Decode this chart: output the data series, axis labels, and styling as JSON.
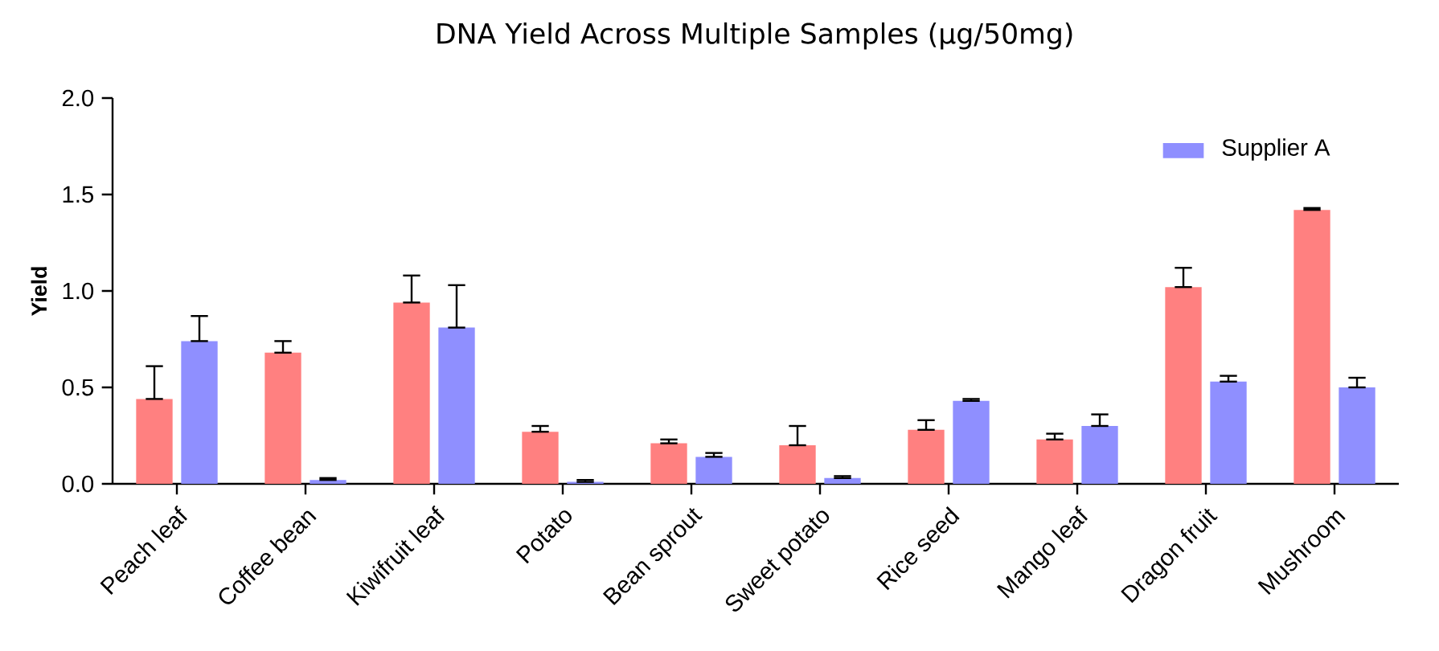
{
  "chart_data": {
    "type": "bar",
    "title": "DNA Yield Across Multiple Samples (µg/50mg)",
    "ylabel": "Yield",
    "categories": [
      "Peach leaf",
      "Coffee bean",
      "Kiwifruit leaf",
      "Potato",
      "Bean sprout",
      "Sweet potato",
      "Rice seed",
      "Mango leaf",
      "Dragon fruit",
      "Mushroom"
    ],
    "series": [
      {
        "color": "#ff8080",
        "values": [
          0.44,
          0.68,
          0.94,
          0.27,
          0.21,
          0.2,
          0.28,
          0.23,
          1.02,
          1.42
        ],
        "errors": [
          [
            0.44,
            0.61
          ],
          [
            0.68,
            0.74
          ],
          [
            0.94,
            1.08
          ],
          [
            0.27,
            0.3
          ],
          [
            0.21,
            0.23
          ],
          [
            0.2,
            0.3
          ],
          [
            0.28,
            0.33
          ],
          [
            0.23,
            0.26
          ],
          [
            1.02,
            1.12
          ],
          [
            1.42,
            1.43
          ]
        ]
      },
      {
        "name": "Supplier A",
        "color": "#8f8fff",
        "values": [
          0.74,
          0.02,
          0.81,
          0.01,
          0.14,
          0.03,
          0.43,
          0.3,
          0.53,
          0.5
        ],
        "errors": [
          [
            0.74,
            0.87
          ],
          [
            0.02,
            0.03
          ],
          [
            0.81,
            1.03
          ],
          [
            0.01,
            0.02
          ],
          [
            0.14,
            0.16
          ],
          [
            0.03,
            0.04
          ],
          [
            0.43,
            0.44
          ],
          [
            0.3,
            0.36
          ],
          [
            0.53,
            0.56
          ],
          [
            0.5,
            0.55
          ]
        ]
      }
    ],
    "ylim": [
      0,
      2
    ],
    "yticks": [
      {
        "value": 0,
        "label": "0.0"
      },
      {
        "value": 0.5,
        "label": "0.5"
      },
      {
        "value": 1,
        "label": "1.0"
      },
      {
        "value": 1.5,
        "label": "1.5"
      },
      {
        "value": 2,
        "label": "2.0"
      }
    ],
    "legend": "top right",
    "grid": false
  }
}
